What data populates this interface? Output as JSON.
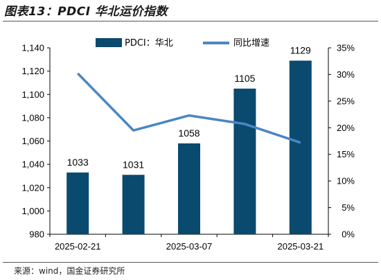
{
  "title": "图表13：PDCI 华北运价指数",
  "source": "来源：wind，国金证券研究所",
  "colors": {
    "bar": "#0b4a6f",
    "line": "#4a86c5"
  },
  "chart_data": {
    "type": "bar",
    "categories": [
      "",
      "",
      "",
      "",
      ""
    ],
    "x_tick_labels": [
      {
        "index": 0,
        "label": "2025-02-21"
      },
      {
        "index": 2,
        "label": "2025-03-07"
      },
      {
        "index": 4,
        "label": "2025-03-21"
      }
    ],
    "series": [
      {
        "name": "PDCI：华北",
        "type": "bar",
        "axis": "left",
        "values": [
          1033,
          1031,
          1058,
          1105,
          1129
        ]
      },
      {
        "name": "同比增速",
        "type": "line",
        "axis": "right",
        "values": [
          30.2,
          19.5,
          22.3,
          20.7,
          17.2
        ]
      }
    ],
    "y_left": {
      "min": 980,
      "max": 1140,
      "step": 20,
      "tick_labels": [
        "980",
        "1,000",
        "1,020",
        "1,040",
        "1,060",
        "1,080",
        "1,100",
        "1,120",
        "1,140"
      ]
    },
    "y_right": {
      "min": 0,
      "max": 35,
      "step": 5,
      "tick_labels": [
        "0%",
        "5%",
        "10%",
        "15%",
        "20%",
        "25%",
        "30%",
        "35%"
      ]
    },
    "data_labels": [
      "1033",
      "1031",
      "1058",
      "1105",
      "1129"
    ],
    "legend_position": "top",
    "grid": false
  }
}
